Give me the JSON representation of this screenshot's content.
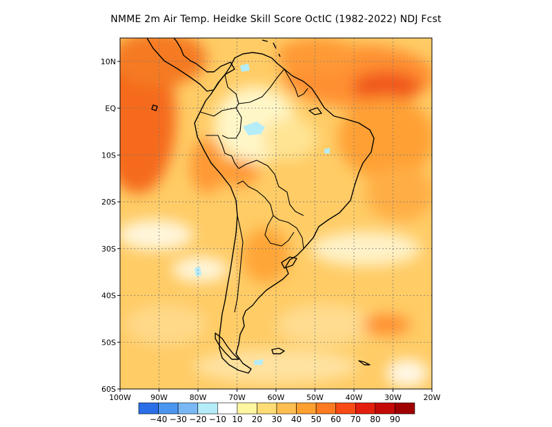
{
  "title": "NMME  2m Air Temp. Heidke Skill Score OctIC (1982-2022) NDJ Fcst",
  "chart_data": {
    "type": "heatmap",
    "title": "NMME  2m Air Temp. Heidke Skill Score OctIC (1982-2022) NDJ Fcst",
    "xlim": [
      -100,
      -20
    ],
    "ylim": [
      -60,
      15
    ],
    "lon_ticks": [
      {
        "value": -100,
        "label": "100W"
      },
      {
        "value": -90,
        "label": "90W"
      },
      {
        "value": -80,
        "label": "80W"
      },
      {
        "value": -70,
        "label": "70W"
      },
      {
        "value": -60,
        "label": "60W"
      },
      {
        "value": -50,
        "label": "50W"
      },
      {
        "value": -40,
        "label": "40W"
      },
      {
        "value": -30,
        "label": "30W"
      },
      {
        "value": -20,
        "label": "20W"
      }
    ],
    "lat_ticks": [
      {
        "value": 10,
        "label": "10N"
      },
      {
        "value": 0,
        "label": "EQ"
      },
      {
        "value": -10,
        "label": "10S"
      },
      {
        "value": -20,
        "label": "20S"
      },
      {
        "value": -30,
        "label": "30S"
      },
      {
        "value": -40,
        "label": "40S"
      },
      {
        "value": -50,
        "label": "50S"
      },
      {
        "value": -60,
        "label": "60S"
      }
    ],
    "grid": true,
    "colorbar": {
      "placement": "bottom",
      "colors": [
        "#2a6ee8",
        "#4a96f0",
        "#7ab8f5",
        "#b4ecf8",
        "#ffffff",
        "#fff6a0",
        "#ffdc74",
        "#ffbe50",
        "#ffa030",
        "#ff7a20",
        "#f84a14",
        "#e41e0c",
        "#c40a06",
        "#a00000"
      ],
      "labels": [
        "-40",
        "-30",
        "-20",
        "-10",
        "10",
        "20",
        "30",
        "40",
        "50",
        "60",
        "70",
        "80",
        "90"
      ]
    },
    "regions": [
      {
        "value": 55,
        "lon": [
          -100,
          -90
        ],
        "lat": [
          15,
          -12
        ]
      },
      {
        "value": 50,
        "lon": [
          -92,
          -75
        ],
        "lat": [
          15,
          7
        ]
      },
      {
        "value": 45,
        "lon": [
          -55,
          -20
        ],
        "lat": [
          14,
          -2
        ]
      },
      {
        "value": 40,
        "lon": [
          -45,
          -20
        ],
        "lat": [
          -5,
          -25
        ]
      },
      {
        "value": 35,
        "lon": [
          -100,
          -80
        ],
        "lat": [
          -12,
          -25
        ]
      },
      {
        "value": 10,
        "lon": [
          -75,
          -55
        ],
        "lat": [
          0,
          -10
        ]
      },
      {
        "value": 10,
        "lon": [
          -100,
          -85
        ],
        "lat": [
          -26,
          -32
        ]
      },
      {
        "value": 30,
        "lon": [
          -65,
          -55
        ],
        "lat": [
          -28,
          -40
        ]
      },
      {
        "value": 20,
        "lon": [
          -100,
          -20
        ],
        "lat": [
          -40,
          -60
        ]
      }
    ]
  }
}
